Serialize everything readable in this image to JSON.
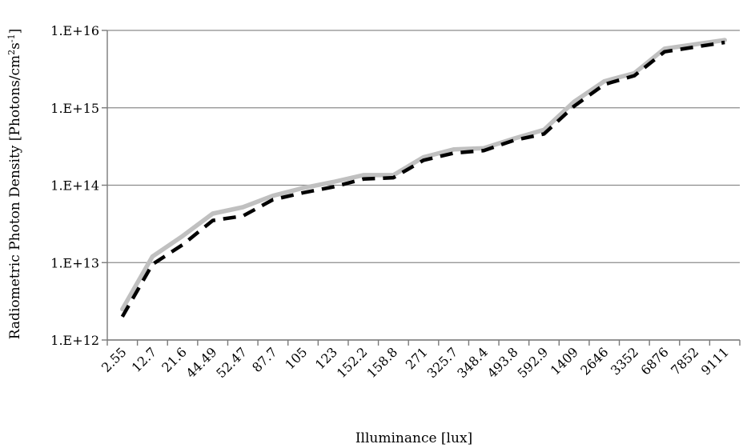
{
  "chart_data": {
    "type": "line",
    "title": "",
    "xlabel": "Illuminance [lux]",
    "ylabel_main": "Radiometric Photon Density [Photons/cm",
    "ylabel_sup1": "2",
    "ylabel_mid": "s",
    "ylabel_sup2": "-1",
    "ylabel_end": "]",
    "y_scale": "log",
    "ylim": [
      1000000000000.0,
      1e+16
    ],
    "yticks": [
      {
        "value": 1000000000000.0,
        "label": "1.E+12"
      },
      {
        "value": 10000000000000.0,
        "label": "1.E+13"
      },
      {
        "value": 100000000000000.0,
        "label": "1.E+14"
      },
      {
        "value": 1000000000000000.0,
        "label": "1.E+15"
      },
      {
        "value": 1e+16,
        "label": "1.E+16"
      }
    ],
    "grid": true,
    "legend": "none",
    "categories": [
      "2.55",
      "12.7",
      "21.6",
      "44.49",
      "52.47",
      "87.7",
      "105",
      "123",
      "152.2",
      "158.8",
      "271",
      "325.7",
      "348.4",
      "493.8",
      "592.9",
      "1409",
      "2646",
      "3352",
      "6876",
      "7852",
      "9111"
    ],
    "series": [
      {
        "style": "solid",
        "color": "#c0c0c0",
        "values": [
          2500000000000.0,
          12000000000000.0,
          22000000000000.0,
          43000000000000.0,
          52000000000000.0,
          73000000000000.0,
          92000000000000.0,
          110000000000000.0,
          135000000000000.0,
          135000000000000.0,
          230000000000000.0,
          290000000000000.0,
          300000000000000.0,
          400000000000000.0,
          520000000000000.0,
          1200000000000000.0,
          2200000000000000.0,
          2800000000000000.0,
          5800000000000000.0,
          6600000000000000.0,
          7500000000000000.0
        ]
      },
      {
        "style": "dashed",
        "color": "#000000",
        "values": [
          2000000000000.0,
          9500000000000.0,
          17000000000000.0,
          35000000000000.0,
          40000000000000.0,
          65000000000000.0,
          80000000000000.0,
          95000000000000.0,
          120000000000000.0,
          125000000000000.0,
          210000000000000.0,
          260000000000000.0,
          280000000000000.0,
          380000000000000.0,
          460000000000000.0,
          1050000000000000.0,
          2000000000000000.0,
          2600000000000000.0,
          5300000000000000.0,
          6100000000000000.0,
          7000000000000000.0
        ]
      }
    ]
  }
}
